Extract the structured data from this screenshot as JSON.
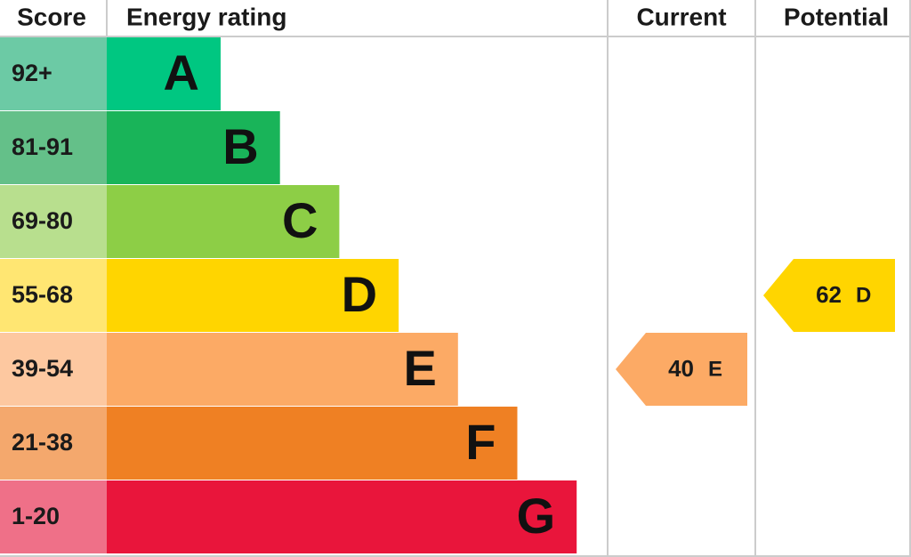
{
  "header": {
    "score": "Score",
    "energy_rating": "Energy rating",
    "current": "Current",
    "potential": "Potential"
  },
  "bands": [
    {
      "score": "92+",
      "rating": "A",
      "color": "#00c781",
      "score_color": "#6ccaa5"
    },
    {
      "score": "81-91",
      "rating": "B",
      "color": "#19b459",
      "score_color": "#64c089"
    },
    {
      "score": "69-80",
      "rating": "C",
      "color": "#8dce46",
      "score_color": "#b8df8e"
    },
    {
      "score": "55-68",
      "rating": "D",
      "color": "#ffd500",
      "score_color": "#ffe672"
    },
    {
      "score": "39-54",
      "rating": "E",
      "color": "#fcaa65",
      "score_color": "#fdc8a0"
    },
    {
      "score": "21-38",
      "rating": "F",
      "color": "#ef8023",
      "score_color": "#f4a86d"
    },
    {
      "score": "1-20",
      "rating": "G",
      "color": "#e9153b",
      "score_color": "#ef7088"
    }
  ],
  "current": {
    "score": 40,
    "rating": "E"
  },
  "potential": {
    "score": 62,
    "rating": "D"
  }
}
